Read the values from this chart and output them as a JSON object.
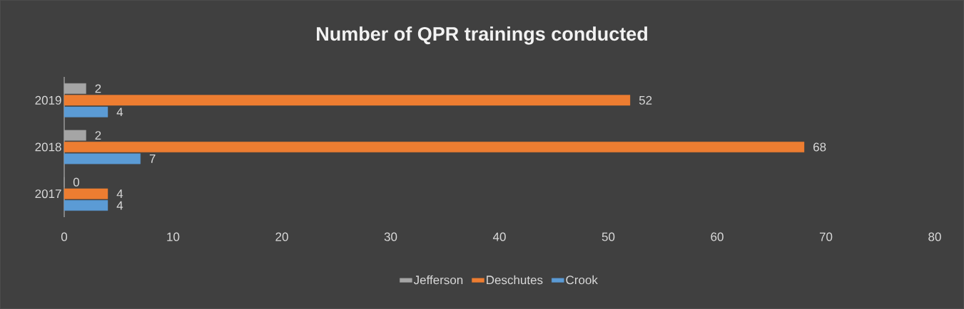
{
  "chart_data": {
    "type": "bar",
    "orientation": "horizontal",
    "title": "Number of QPR trainings conducted",
    "categories": [
      "2019",
      "2018",
      "2017"
    ],
    "series": [
      {
        "name": "Jefferson",
        "color": "#a5a5a5",
        "values": [
          2,
          2,
          0
        ]
      },
      {
        "name": "Deschutes",
        "color": "#ed7d31",
        "values": [
          52,
          68,
          4
        ]
      },
      {
        "name": "Crook",
        "color": "#5b9bd5",
        "values": [
          4,
          7,
          4
        ]
      }
    ],
    "xlim": [
      0,
      80
    ],
    "xticks": [
      0,
      10,
      20,
      30,
      40,
      50,
      60,
      70,
      80
    ],
    "data_labels": true,
    "legend": "bottom"
  }
}
